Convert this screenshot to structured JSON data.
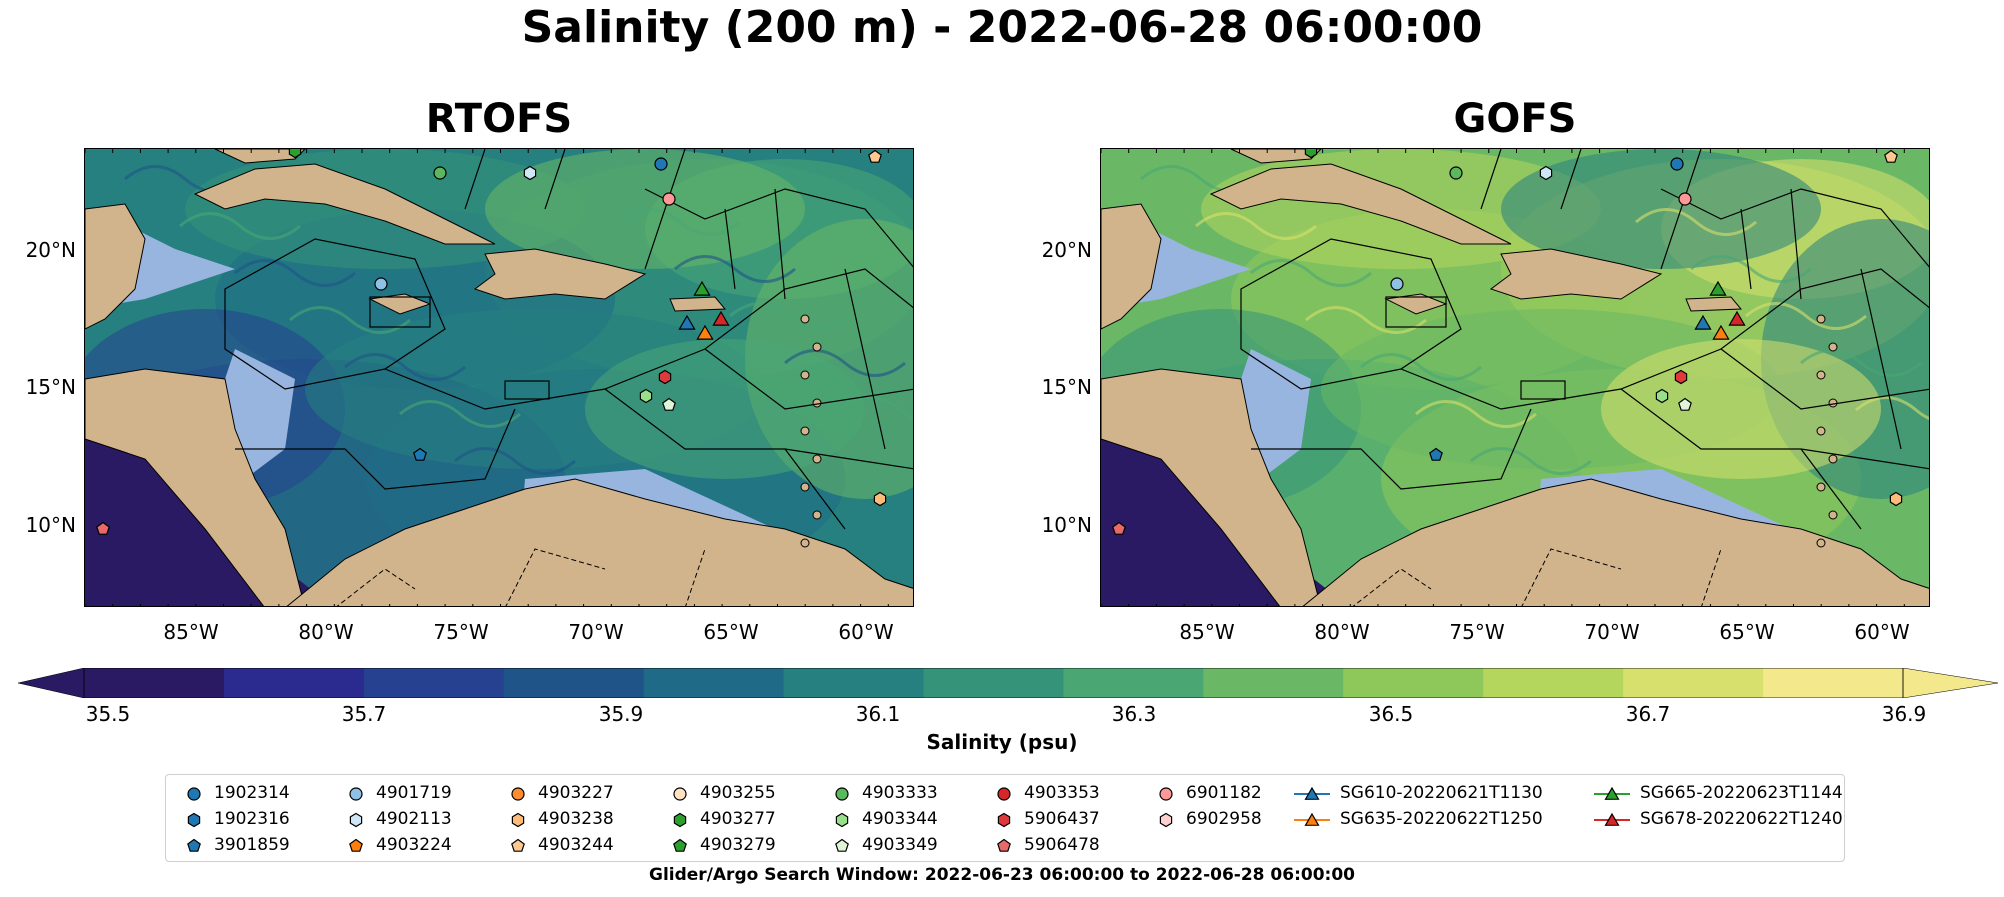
{
  "title": "Salinity (200 m) - 2022-06-28 06:00:00",
  "panels": [
    {
      "title": "RTOFS",
      "palette": "low"
    },
    {
      "title": "GOFS",
      "palette": "high"
    }
  ],
  "lat_ticks": [
    "20°N",
    "15°N",
    "10°N"
  ],
  "lon_ticks": [
    "85°W",
    "80°W",
    "75°W",
    "70°W",
    "65°W",
    "60°W"
  ],
  "colorbar": {
    "label": "Salinity (psu)",
    "ticks": [
      "35.5",
      "35.7",
      "35.9",
      "36.1",
      "36.3",
      "36.5",
      "36.7",
      "36.9"
    ],
    "range": [
      35.5,
      36.9
    ],
    "colors": [
      "#2a1a63",
      "#2a2a8f",
      "#25418f",
      "#1f5488",
      "#1f6b87",
      "#26807f",
      "#35937a",
      "#4aa774",
      "#6ab865",
      "#8fc85a",
      "#b5d65c",
      "#d7e06d",
      "#f3e98c"
    ],
    "extend": "both"
  },
  "legend": {
    "items": [
      {
        "label": "1902314",
        "marker": "circle",
        "color": "#1f77b4"
      },
      {
        "label": "1902316",
        "marker": "hexagon",
        "color": "#1f77b4"
      },
      {
        "label": "3901859",
        "marker": "pentagon",
        "color": "#1f77b4"
      },
      {
        "label": "4901719",
        "marker": "circle",
        "color": "#8ec1e6"
      },
      {
        "label": "4902113",
        "marker": "hexagon",
        "color": "#cfe6f7"
      },
      {
        "label": "4903224",
        "marker": "pentagon",
        "color": "#ff7f0e"
      },
      {
        "label": "4903227",
        "marker": "circle",
        "color": "#ff8c2e"
      },
      {
        "label": "4903238",
        "marker": "hexagon",
        "color": "#ffbb78"
      },
      {
        "label": "4903244",
        "marker": "pentagon",
        "color": "#ffc891"
      },
      {
        "label": "4903255",
        "marker": "circle",
        "color": "#ffe2c4"
      },
      {
        "label": "4903277",
        "marker": "hexagon",
        "color": "#2ca02c"
      },
      {
        "label": "4903279",
        "marker": "pentagon",
        "color": "#2ca02c"
      },
      {
        "label": "4903333",
        "marker": "circle",
        "color": "#5cb85c"
      },
      {
        "label": "4903344",
        "marker": "hexagon",
        "color": "#98df8a"
      },
      {
        "label": "4903349",
        "marker": "pentagon",
        "color": "#e0f5d8"
      },
      {
        "label": "4903353",
        "marker": "circle",
        "color": "#d62728"
      },
      {
        "label": "5906437",
        "marker": "hexagon",
        "color": "#e0393b"
      },
      {
        "label": "5906478",
        "marker": "pentagon",
        "color": "#e8696a"
      },
      {
        "label": "6901182",
        "marker": "circle",
        "color": "#ff9896"
      },
      {
        "label": "6902958",
        "marker": "hexagon",
        "color": "#ffd0cf"
      },
      {
        "label": "SG610-20220621T1130",
        "marker": "triangle",
        "color": "#1f77b4"
      },
      {
        "label": "SG635-20220622T1250",
        "marker": "triangle",
        "color": "#ff7f0e"
      },
      {
        "label": "SG665-20220623T1144",
        "marker": "triangle",
        "color": "#2ca02c"
      },
      {
        "label": "SG678-20220622T1240",
        "marker": "triangle",
        "color": "#d62728"
      }
    ]
  },
  "footer": "Glider/Argo Search Window: 2022-06-23 06:00:00 to 2022-06-28 06:00:00",
  "map_colors": {
    "land": "#d2b48c",
    "shallow": "#98b5e0",
    "deep_pacific": "#2a1a63",
    "borders": "#000000"
  }
}
